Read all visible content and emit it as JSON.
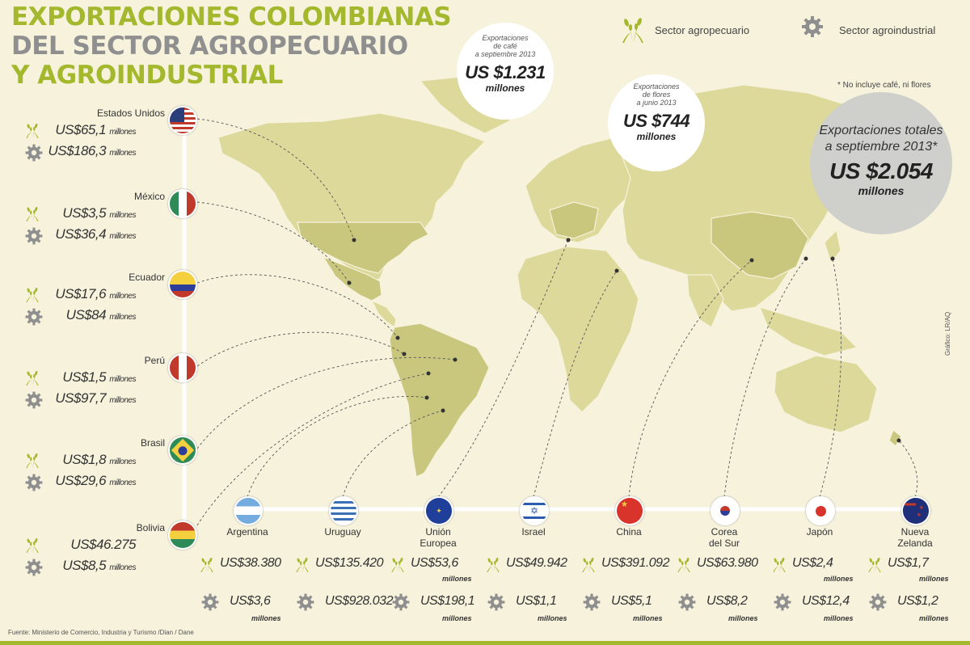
{
  "title": {
    "line1": "EXPORTACIONES COLOMBIANAS",
    "line2": "DEL SECTOR AGROPECUARIO",
    "line3": "Y AGROINDUSTRIAL"
  },
  "legend": {
    "agro": "Sector agropecuario",
    "agroind": "Sector agroindustrial",
    "agro_icon": "wheat-icon",
    "agroind_icon": "gear-icon"
  },
  "note": "* No incluye café, ni flores",
  "cafe": {
    "cap1": "Exportaciones",
    "cap2": "de café",
    "cap3": "a septiembre 2013",
    "value": "US $1.231",
    "unit": "millones"
  },
  "flores": {
    "cap1": "Exportaciones",
    "cap2": "de flores",
    "cap3": "a junio 2013",
    "value": "US $744",
    "unit": "millones"
  },
  "total": {
    "cap1": "Exportaciones totales",
    "cap2": "a septiembre 2013*",
    "value": "US $2.054",
    "unit": "millones"
  },
  "left_countries": [
    {
      "name": "Estados Unidos",
      "agro": "US$65,1",
      "agro_unit": "millones",
      "agroind": "US$186,3",
      "agroind_unit": "millones"
    },
    {
      "name": "México",
      "agro": "US$3,5",
      "agro_unit": "millones",
      "agroind": "US$36,4",
      "agroind_unit": "millones"
    },
    {
      "name": "Ecuador",
      "agro": "US$17,6",
      "agro_unit": "millones",
      "agroind": "US$84",
      "agroind_unit": "millones"
    },
    {
      "name": "Perú",
      "agro": "US$1,5",
      "agro_unit": "millones",
      "agroind": "US$97,7",
      "agroind_unit": "millones"
    },
    {
      "name": "Brasil",
      "agro": "US$1,8",
      "agro_unit": "millones",
      "agroind": "US$29,6",
      "agroind_unit": "millones"
    },
    {
      "name": "Bolivia",
      "agro": "US$46.275",
      "agro_unit": "",
      "agroind": "US$8,5",
      "agroind_unit": "millones"
    }
  ],
  "bottom_countries": [
    {
      "name": "Argentina",
      "agro": "US$38.380",
      "agro_unit": "",
      "agroind": "US$3,6",
      "agroind_unit": "millones"
    },
    {
      "name": "Uruguay",
      "agro": "US$135.420",
      "agro_unit": "",
      "agroind": "US$928.032",
      "agroind_unit": ""
    },
    {
      "name": "Unión\nEuropea",
      "agro": "US$53,6",
      "agro_unit": "millones",
      "agroind": "US$198,1",
      "agroind_unit": "millones"
    },
    {
      "name": "Israel",
      "agro": "US$49.942",
      "agro_unit": "",
      "agroind": "US$1,1",
      "agroind_unit": "millones"
    },
    {
      "name": "China",
      "agro": "US$391.092",
      "agro_unit": "",
      "agroind": "US$5,1",
      "agroind_unit": "millones"
    },
    {
      "name": "Corea\ndel Sur",
      "agro": "US$63.980",
      "agro_unit": "",
      "agroind": "US$8,2",
      "agroind_unit": "millones"
    },
    {
      "name": "Japón",
      "agro": "US$2,4",
      "agro_unit": "millones",
      "agroind": "US$12,4",
      "agroind_unit": "millones"
    },
    {
      "name": "Nueva\nZelanda",
      "agro": "US$1,7",
      "agro_unit": "millones",
      "agroind": "US$1,2",
      "agroind_unit": "millones"
    }
  ],
  "footer": "Fuente:  Ministerio de Comercio, Industria y Turismo /Dian / Dane",
  "credit": "Gráfico: LR/AQ",
  "colors": {
    "accent": "#a3b82c",
    "land": "#dcd99a",
    "land_dark": "#c9c77e",
    "background": "#f6f2dc",
    "gray": "#8f8f8f"
  }
}
